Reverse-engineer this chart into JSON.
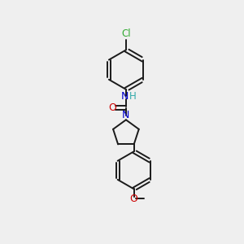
{
  "background_color": "#efefef",
  "bond_color": "#1a1a1a",
  "bond_width": 1.4,
  "N_color": "#0000cc",
  "O_color": "#cc0000",
  "Cl_color": "#33aa33",
  "H_color": "#33aaaa",
  "figsize": [
    3.0,
    3.0
  ],
  "dpi": 100,
  "xlim": [
    0,
    10
  ],
  "ylim": [
    0,
    10
  ]
}
